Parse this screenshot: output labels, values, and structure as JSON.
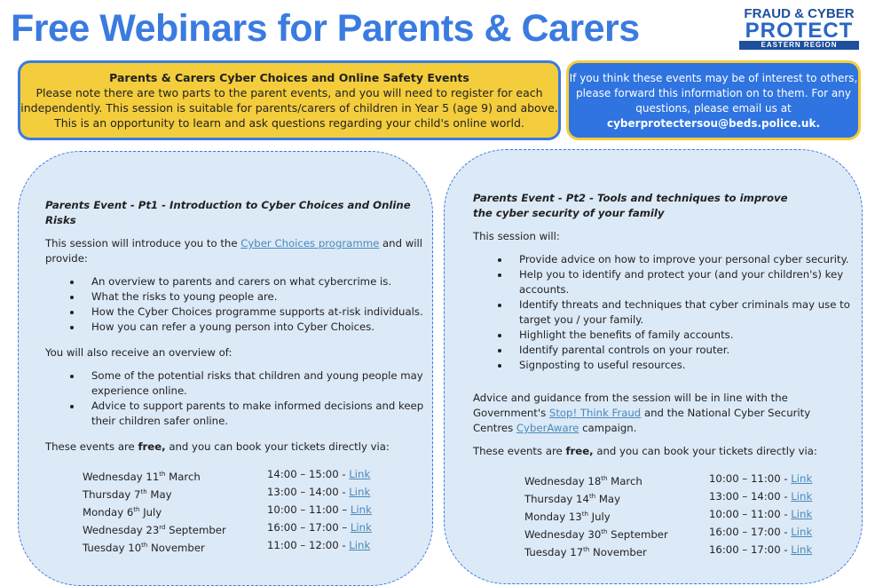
{
  "title": "Free Webinars for Parents & Carers",
  "logo": {
    "line1": "FRAUD & CYBER",
    "line2": "PROTECT",
    "line3": "EASTERN REGION"
  },
  "intro": {
    "heading": "Parents & Carers Cyber Choices and Online Safety Events",
    "body": "Please note there are two parts to the parent events, and you will need to register for each independently. This session is suitable for parents/carers of children in Year 5 (age 9) and above. This is an opportunity to learn and ask questions regarding your child's online world."
  },
  "contact": {
    "text": "If you think these events may be of interest to others, please forward this information on to them. For any questions, please email us at",
    "email": "cyberprotectersou@beds.police.uk."
  },
  "pt1": {
    "heading": "Parents Event - Pt1 - Introduction to Cyber Choices and Online Risks",
    "intro_a": "This session will introduce you to the ",
    "intro_link": "Cyber Choices programme",
    "intro_b": " and will provide:",
    "bullets": [
      "An overview to parents and carers on what cybercrime is.",
      "What the risks to young people are.",
      "How the Cyber Choices programme supports at-risk individuals.",
      "How you can refer a young person into Cyber Choices."
    ],
    "overview": "You will also receive an overview of:",
    "bullets2": [
      "Some of the potential risks that children and young people may experience online.",
      "Advice to support parents to make informed decisions and keep their children safer online."
    ],
    "book_a": "These events are ",
    "book_free": "free,",
    "book_b": " and you can book your tickets directly via:",
    "link_label": "Link",
    "dates": [
      {
        "pre": "Wednesday 11",
        "sup": "th",
        "post": " March",
        "time": "14:00 – 15:00 - "
      },
      {
        "pre": "Thursday 7",
        "sup": "th",
        "post": " May",
        "time": "13:00 – 14:00 - "
      },
      {
        "pre": "Monday 6",
        "sup": "th",
        "post": " July",
        "time": "10:00 – 11:00 – "
      },
      {
        "pre": "Wednesday 23",
        "sup": "rd",
        "post": " September",
        "time": "16:00 – 17:00 – "
      },
      {
        "pre": "Tuesday 10",
        "sup": "th",
        "post": " November",
        "time": "11:00 – 12:00 - "
      }
    ]
  },
  "pt2": {
    "heading": "Parents Event - Pt2 - Tools and techniques to improve the cyber security of your family",
    "intro": "This session will:",
    "bullets": [
      "Provide advice on how to improve your personal cyber security.",
      "Help you to identify and protect your (and your children's) key accounts.",
      "Identify threats and techniques that cyber criminals may use to target you / your family.",
      "Highlight the benefits of family accounts.",
      "Identify parental controls on your router.",
      "Signposting to useful resources."
    ],
    "advice_a": "Advice and guidance from the session will be in line with the Government's ",
    "advice_link1": "Stop! Think Fraud",
    "advice_b": " and the National Cyber Security Centres ",
    "advice_link2": "CyberAware",
    "advice_c": " campaign.",
    "book_a": "These events are ",
    "book_free": "free,",
    "book_b": " and you can book your tickets directly via:",
    "link_label": "Link",
    "dates": [
      {
        "pre": "Wednesday 18",
        "sup": "th",
        "post": " March",
        "time": "10:00 – 11:00 - "
      },
      {
        "pre": "Thursday 14",
        "sup": "th",
        "post": " May",
        "time": "13:00 – 14:00 - "
      },
      {
        "pre": "Monday 13",
        "sup": "th",
        "post": " July",
        "time": "10:00 – 11:00 - "
      },
      {
        "pre": "Wednesday 30",
        "sup": "th",
        "post": " September",
        "time": "16:00 – 17:00 - "
      },
      {
        "pre": "Tuesday 17",
        "sup": "th",
        "post": " November",
        "time": "16:00 – 17:00 - "
      }
    ]
  }
}
